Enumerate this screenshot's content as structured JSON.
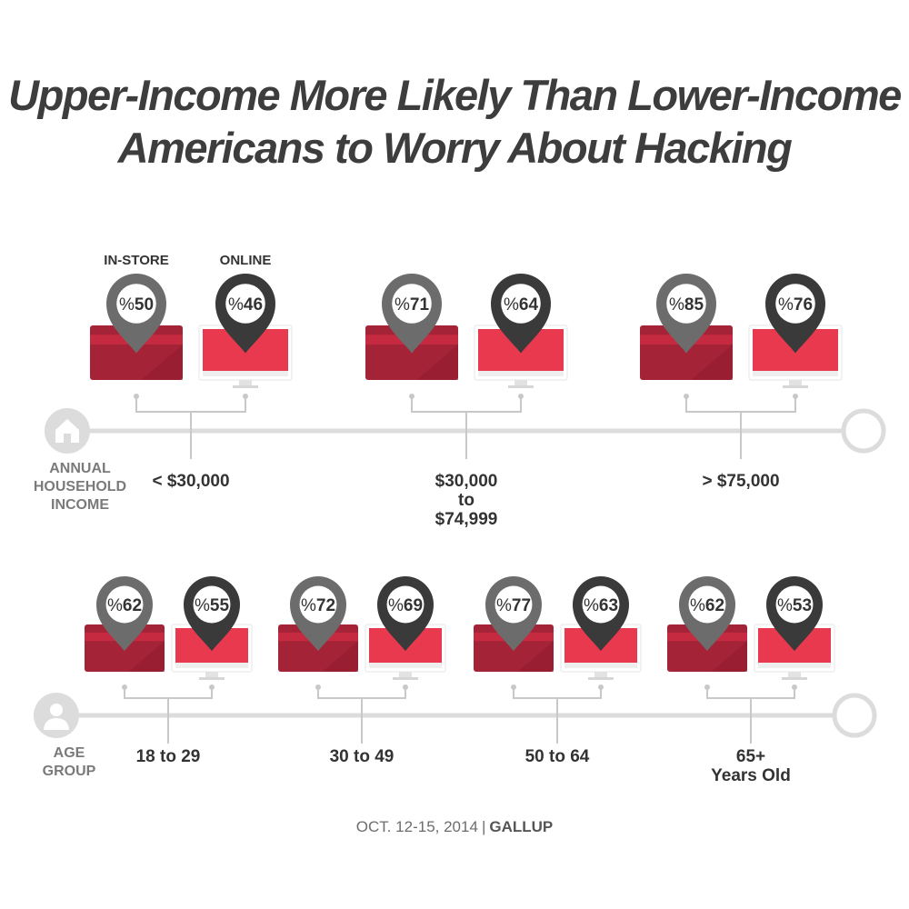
{
  "title_lines": [
    "Upper-Income More Likely Than Lower-Income",
    "Americans to Worry About Hacking"
  ],
  "footer": {
    "date": "OCT. 12-15, 2014",
    "separator": "|",
    "source": "GALLUP"
  },
  "colors": {
    "card": "#a52337",
    "card_stripe": "#c52a40",
    "card_dark": "#8f1b2d",
    "screen": "#e8394e",
    "monitor_frame": "#eeeeee",
    "pin_instore": "#6c6c6c",
    "pin_online": "#3a3a3a",
    "timeline": "#dcdcdc",
    "connector": "#c8c8c8"
  },
  "chart_data": [
    {
      "type": "bar",
      "group_label": "ANNUAL HOUSEHOLD INCOME",
      "group_icon": "house-icon",
      "series_labels": {
        "instore": "IN-STORE",
        "online": "ONLINE"
      },
      "categories": [
        {
          "label": "< $30,000",
          "instore": 50,
          "online": 46
        },
        {
          "label": "$30,000 to $74,999",
          "instore": 71,
          "online": 64
        },
        {
          "label": "> $75,000",
          "instore": 85,
          "online": 76
        }
      ],
      "value_prefix": "%"
    },
    {
      "type": "bar",
      "group_label": "AGE GROUP",
      "group_icon": "person-icon",
      "categories": [
        {
          "label": "18 to 29",
          "instore": 62,
          "online": 55
        },
        {
          "label": "30 to 49",
          "instore": 72,
          "online": 69
        },
        {
          "label": "50 to 64",
          "instore": 77,
          "online": 63
        },
        {
          "label": "65+ Years Old",
          "instore": 62,
          "online": 53
        }
      ],
      "value_prefix": "%"
    }
  ]
}
